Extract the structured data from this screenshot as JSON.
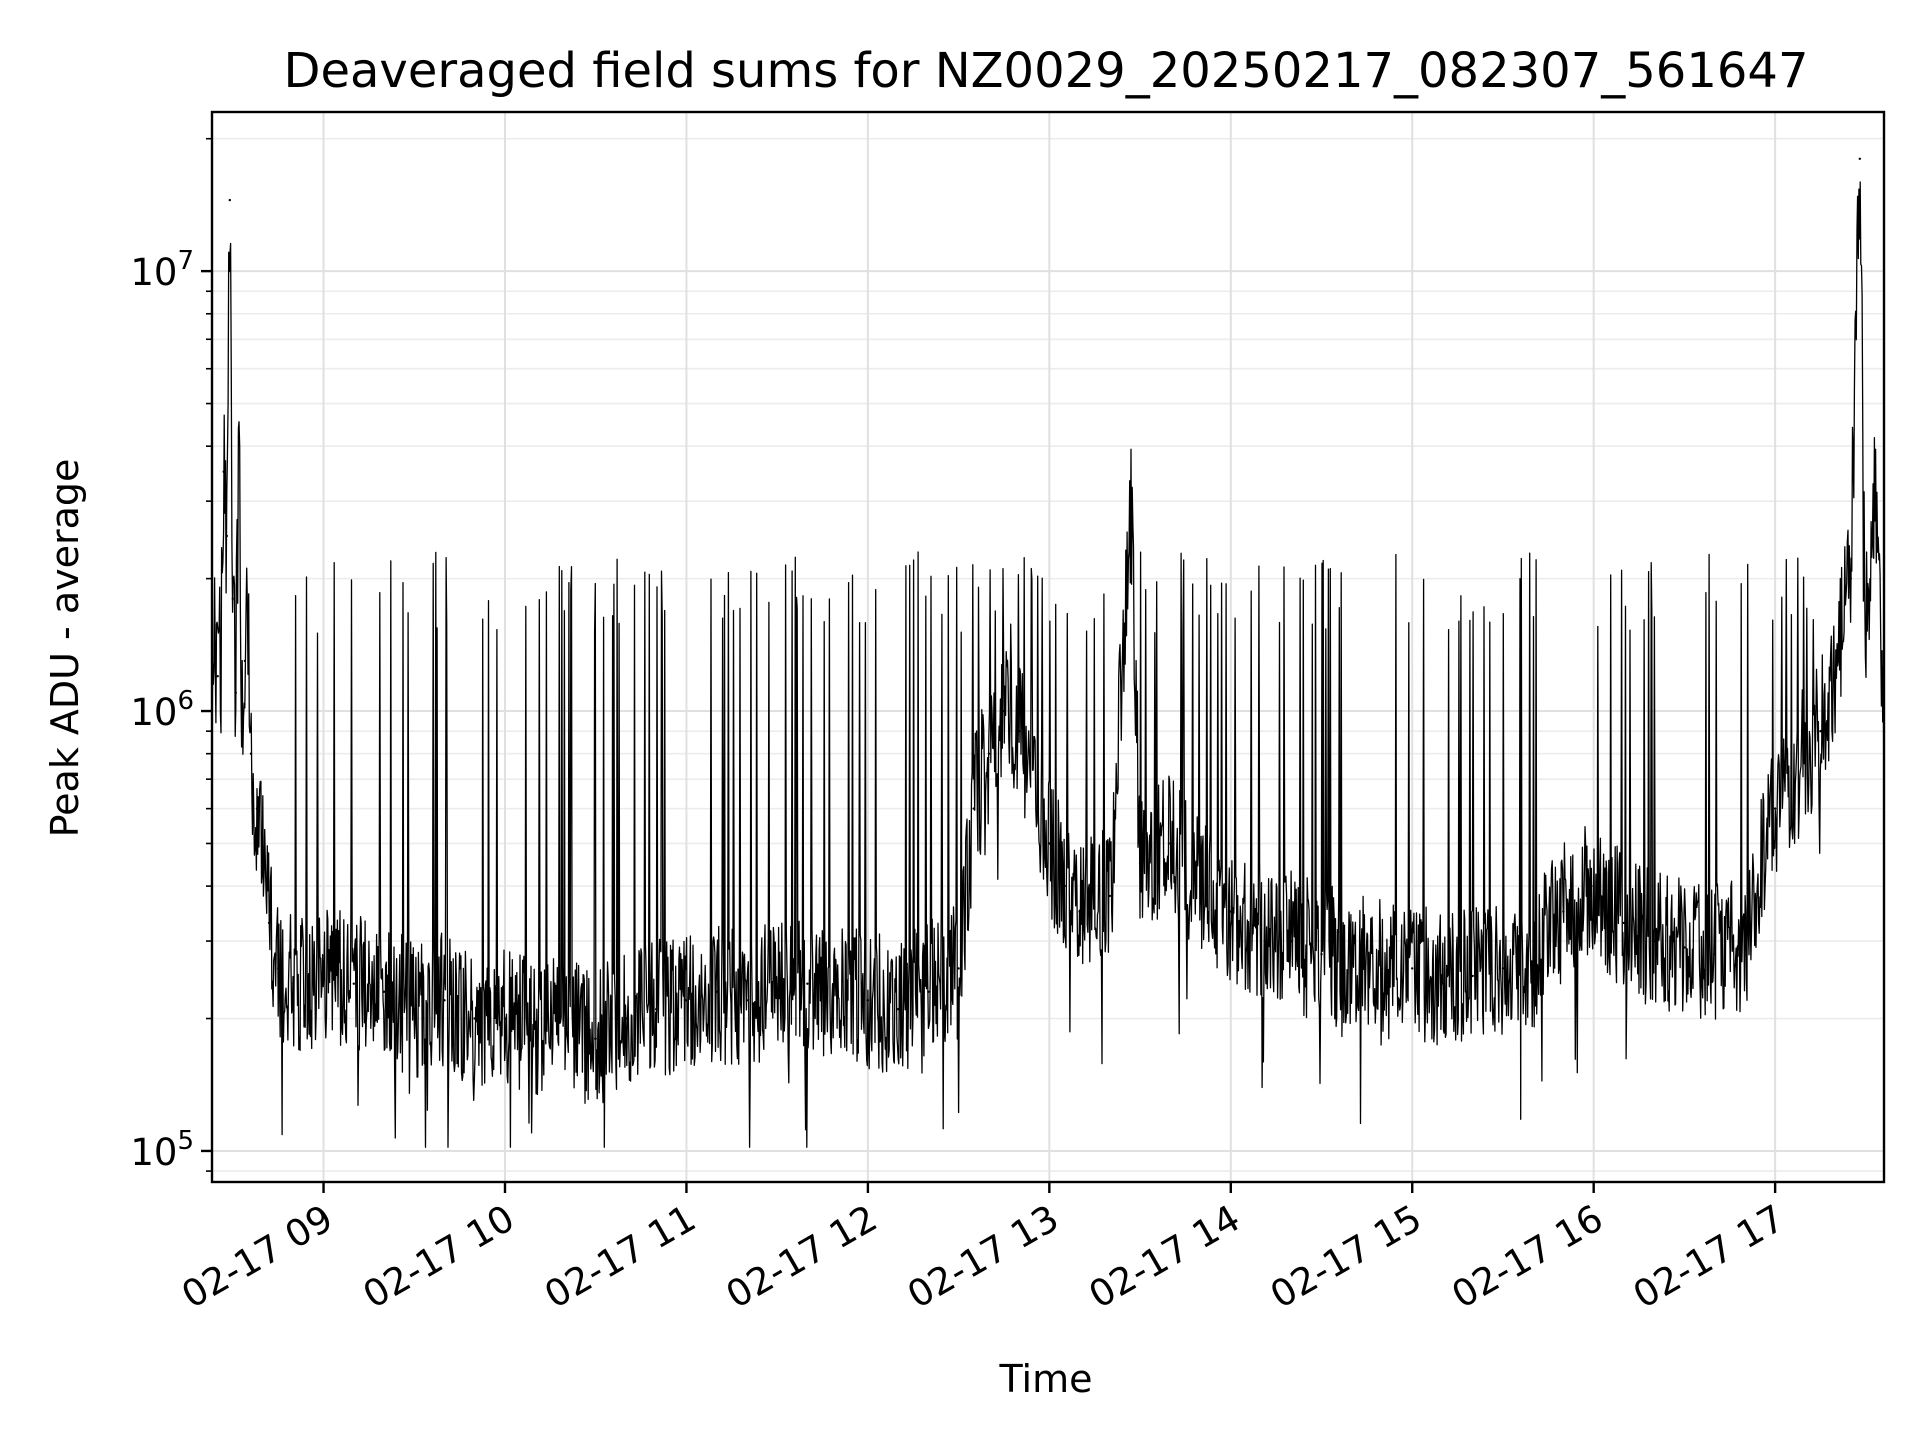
{
  "chart_data": {
    "type": "line",
    "title": "Deaveraged field sums for NZ0029_20250217_082307_561647",
    "xlabel": "Time",
    "ylabel": "Peak ADU - average",
    "x_scale": "time",
    "y_scale": "log",
    "xlim": [
      "2025-02-17 08:23:07",
      "2025-02-17 17:36:00"
    ],
    "ylim": [
      85000,
      23000000
    ],
    "grid": true,
    "grid_minor_y": true,
    "line_color": "#000000",
    "x_ticks": [
      "2025-02-17 09:00",
      "2025-02-17 10:00",
      "2025-02-17 11:00",
      "2025-02-17 12:00",
      "2025-02-17 13:00",
      "2025-02-17 14:00",
      "2025-02-17 15:00",
      "2025-02-17 16:00",
      "2025-02-17 17:00"
    ],
    "x_tick_labels": [
      "02-17 09",
      "02-17 10",
      "02-17 11",
      "02-17 12",
      "02-17 13",
      "02-17 14",
      "02-17 15",
      "02-17 16",
      "02-17 17"
    ],
    "y_ticks": [
      {
        "value": 100000,
        "base": "10",
        "exp": "5"
      },
      {
        "value": 1000000,
        "base": "10",
        "exp": "6"
      },
      {
        "value": 10000000,
        "base": "10",
        "exp": "7"
      }
    ],
    "series": [
      {
        "x": [
          "2025-02-17 08:23",
          "2025-02-17 08:25",
          "2025-02-17 08:27",
          "2025-02-17 08:28",
          "2025-02-17 08:29",
          "2025-02-17 08:30",
          "2025-02-17 08:31",
          "2025-02-17 08:32",
          "2025-02-17 08:33",
          "2025-02-17 08:34",
          "2025-02-17 08:35",
          "2025-02-17 08:36",
          "2025-02-17 08:38",
          "2025-02-17 08:40",
          "2025-02-17 08:42",
          "2025-02-17 08:45",
          "2025-02-17 08:50",
          "2025-02-17 08:55",
          "2025-02-17 09:00",
          "2025-02-17 09:10",
          "2025-02-17 09:20",
          "2025-02-17 09:30",
          "2025-02-17 09:40",
          "2025-02-17 09:50",
          "2025-02-17 10:00",
          "2025-02-17 10:10",
          "2025-02-17 10:20",
          "2025-02-17 10:30",
          "2025-02-17 10:40",
          "2025-02-17 10:50",
          "2025-02-17 11:00",
          "2025-02-17 11:10",
          "2025-02-17 11:20",
          "2025-02-17 11:30",
          "2025-02-17 11:40",
          "2025-02-17 11:50",
          "2025-02-17 12:00",
          "2025-02-17 12:10",
          "2025-02-17 12:20",
          "2025-02-17 12:30",
          "2025-02-17 12:35",
          "2025-02-17 12:40",
          "2025-02-17 12:45",
          "2025-02-17 12:50",
          "2025-02-17 13:00",
          "2025-02-17 13:05",
          "2025-02-17 13:10",
          "2025-02-17 13:20",
          "2025-02-17 13:27",
          "2025-02-17 13:30",
          "2025-02-17 13:40",
          "2025-02-17 13:50",
          "2025-02-17 14:00",
          "2025-02-17 14:10",
          "2025-02-17 14:20",
          "2025-02-17 14:30",
          "2025-02-17 14:40",
          "2025-02-17 14:50",
          "2025-02-17 15:00",
          "2025-02-17 15:10",
          "2025-02-17 15:20",
          "2025-02-17 15:30",
          "2025-02-17 15:40",
          "2025-02-17 15:50",
          "2025-02-17 16:00",
          "2025-02-17 16:10",
          "2025-02-17 16:20",
          "2025-02-17 16:30",
          "2025-02-17 16:40",
          "2025-02-17 16:50",
          "2025-02-17 17:00",
          "2025-02-17 17:10",
          "2025-02-17 17:15",
          "2025-02-17 17:20",
          "2025-02-17 17:25",
          "2025-02-17 17:28",
          "2025-02-17 17:30",
          "2025-02-17 17:33",
          "2025-02-17 17:36"
        ],
        "y": [
          900000,
          1200000,
          3500000,
          2500000,
          14500000,
          1800000,
          1100000,
          4200000,
          900000,
          1300000,
          1700000,
          800000,
          600000,
          450000,
          330000,
          260000,
          240000,
          230000,
          260000,
          240000,
          230000,
          210000,
          220000,
          200000,
          200000,
          190000,
          190000,
          180000,
          200000,
          210000,
          220000,
          230000,
          220000,
          230000,
          240000,
          230000,
          220000,
          210000,
          230000,
          260000,
          600000,
          800000,
          1000000,
          900000,
          500000,
          400000,
          350000,
          380000,
          3000000,
          450000,
          500000,
          400000,
          350000,
          320000,
          300000,
          280000,
          270000,
          260000,
          260000,
          250000,
          250000,
          260000,
          270000,
          350000,
          400000,
          330000,
          300000,
          290000,
          280000,
          300000,
          600000,
          800000,
          900000,
          1200000,
          2000000,
          18000000,
          1500000,
          3500000,
          900000
        ]
      }
    ]
  }
}
